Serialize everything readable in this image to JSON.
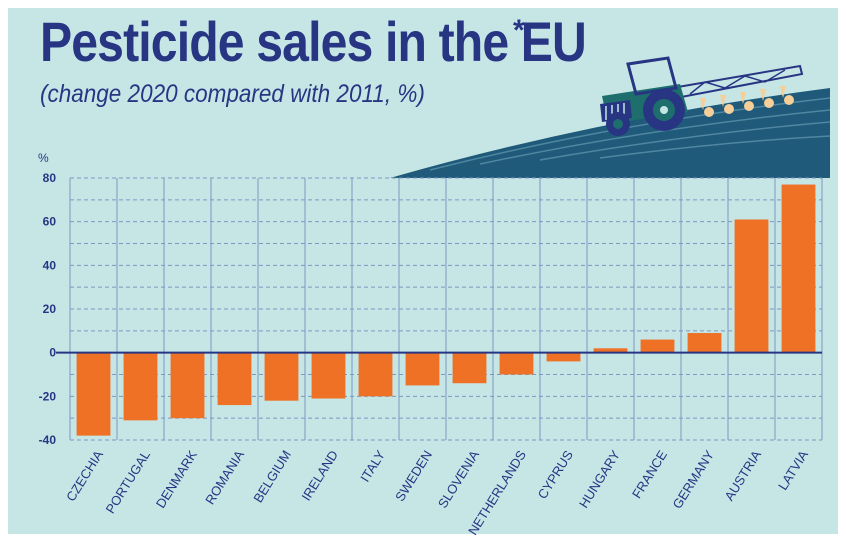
{
  "header": {
    "title": "Pesticide sales in the EU",
    "asterisk": "*",
    "subtitle": "(change 2020 compared with 2011, %)"
  },
  "colors": {
    "background": "#c6e6e6",
    "title": "#283583",
    "bar": "#ee7125",
    "hill": "#1f5a7a",
    "axis": "#283583"
  },
  "illustration": {
    "icon": "tractor-spraying-field-icon"
  },
  "chart_data": {
    "type": "bar",
    "title": "Pesticide sales in the EU",
    "subtitle": "(change 2020 compared with 2011, %)",
    "xlabel": "",
    "ylabel": "%",
    "ylim": [
      -40,
      80
    ],
    "yticks": [
      80,
      60,
      40,
      20,
      0,
      -20,
      -40
    ],
    "grid": true,
    "categories": [
      "CZECHIA",
      "PORTUGAL",
      "DENMARK",
      "ROMANIA",
      "BELGIUM",
      "IRELAND",
      "ITALY",
      "SWEDEN",
      "SLOVENIA",
      "NETHERLANDS",
      "CYPRUS",
      "HUNGARY",
      "FRANCE",
      "GERMANY",
      "AUSTRIA",
      "LATVIA"
    ],
    "values": [
      -38,
      -31,
      -30,
      -24,
      -22,
      -21,
      -20,
      -15,
      -14,
      -10,
      -4,
      2,
      6,
      9,
      61,
      77
    ]
  }
}
